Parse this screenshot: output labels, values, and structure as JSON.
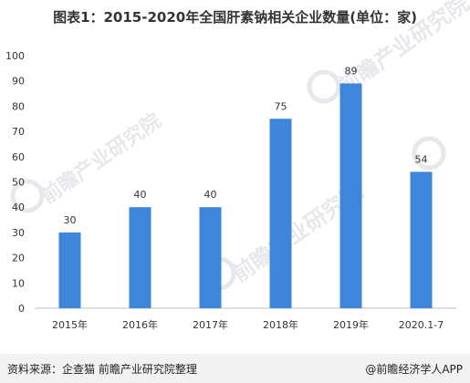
{
  "chart_data": {
    "type": "bar",
    "title": "图表1：2015-2020年全国肝素钠相关企业数量(单位：家)",
    "categories": [
      "2015年",
      "2016年",
      "2017年",
      "2018年",
      "2019年",
      "2020.1-7"
    ],
    "values": [
      30,
      40,
      40,
      75,
      89,
      54
    ],
    "data_labels": [
      "30",
      "40",
      "40",
      "75",
      "89",
      "54"
    ],
    "ylim": [
      0,
      100
    ],
    "yticks": [
      "0",
      "10",
      "20",
      "30",
      "40",
      "50",
      "60",
      "70",
      "80",
      "90",
      "100"
    ],
    "bar_color": "#3e86dc",
    "grid": false,
    "legend": "none"
  },
  "watermark": "前瞻产业研究院",
  "footer": {
    "source": "资料来源：企查猫 前瞻产业研究院整理",
    "credit": "@前瞻经济学人APP"
  }
}
